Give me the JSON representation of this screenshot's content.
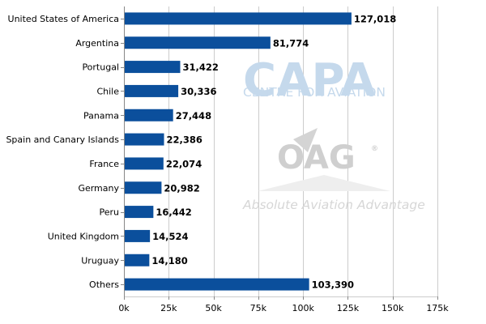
{
  "watermarks": {
    "capa_logo": "CAPA",
    "capa_tagline": "CENTRE FOR AVIATION",
    "oag_logo": "OAG",
    "oag_mark": "®",
    "oag_tagline": "Absolute Aviation Advantage"
  },
  "colors": {
    "bar": "#0b4f9c",
    "grid": "#cccccc",
    "axis": "#888888",
    "text": "#000000"
  },
  "chart_data": {
    "type": "bar",
    "orientation": "horizontal",
    "title": "",
    "xlabel": "",
    "ylabel": "",
    "categories": [
      "United States of America",
      "Argentina",
      "Portugal",
      "Chile",
      "Panama",
      "Spain and Canary Islands",
      "France",
      "Germany",
      "Peru",
      "United Kingdom",
      "Uruguay",
      "Others"
    ],
    "values": [
      127018,
      81774,
      31422,
      30336,
      27448,
      22386,
      22074,
      20982,
      16442,
      14524,
      14180,
      103390
    ],
    "data_labels": [
      "127,018",
      "81,774",
      "31,422",
      "30,336",
      "27,448",
      "22,386",
      "22,074",
      "20,982",
      "16,442",
      "14,524",
      "14,180",
      "103,390"
    ],
    "xlim": [
      0,
      175000
    ],
    "xticks": [
      0,
      25000,
      50000,
      75000,
      100000,
      125000,
      150000,
      175000
    ],
    "xtick_labels": [
      "0k",
      "25k",
      "50k",
      "75k",
      "100k",
      "125k",
      "150k",
      "175k"
    ],
    "grid": true,
    "legend": "none"
  }
}
